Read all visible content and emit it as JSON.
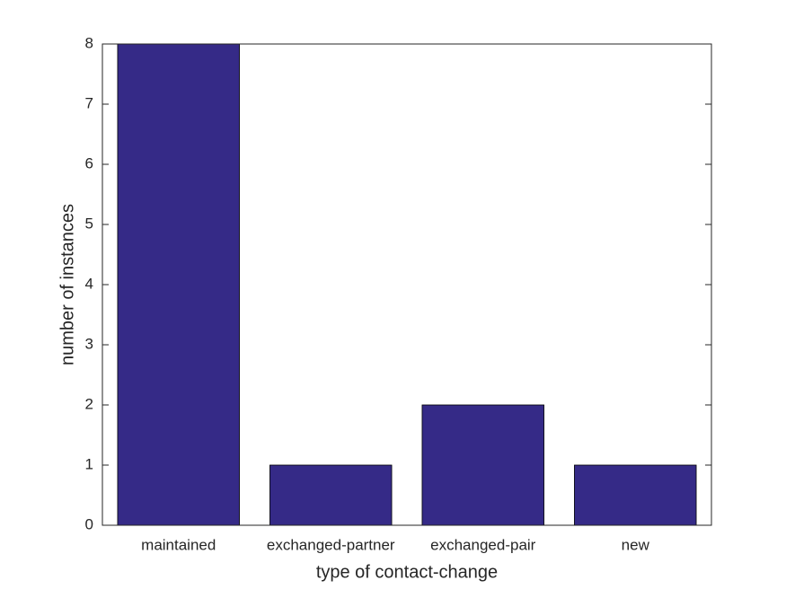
{
  "chart_data": {
    "type": "bar",
    "xlabel": "type of contact-change",
    "ylabel": "number of instances",
    "categories": [
      "maintained",
      "exchanged-partner",
      "exchanged-pair",
      "new"
    ],
    "values": [
      8,
      1,
      2,
      1
    ],
    "color": "#352a87",
    "ylim": [
      0,
      8
    ],
    "yticks": [
      0,
      1,
      2,
      3,
      4,
      5,
      6,
      7,
      8
    ],
    "grid": false
  }
}
